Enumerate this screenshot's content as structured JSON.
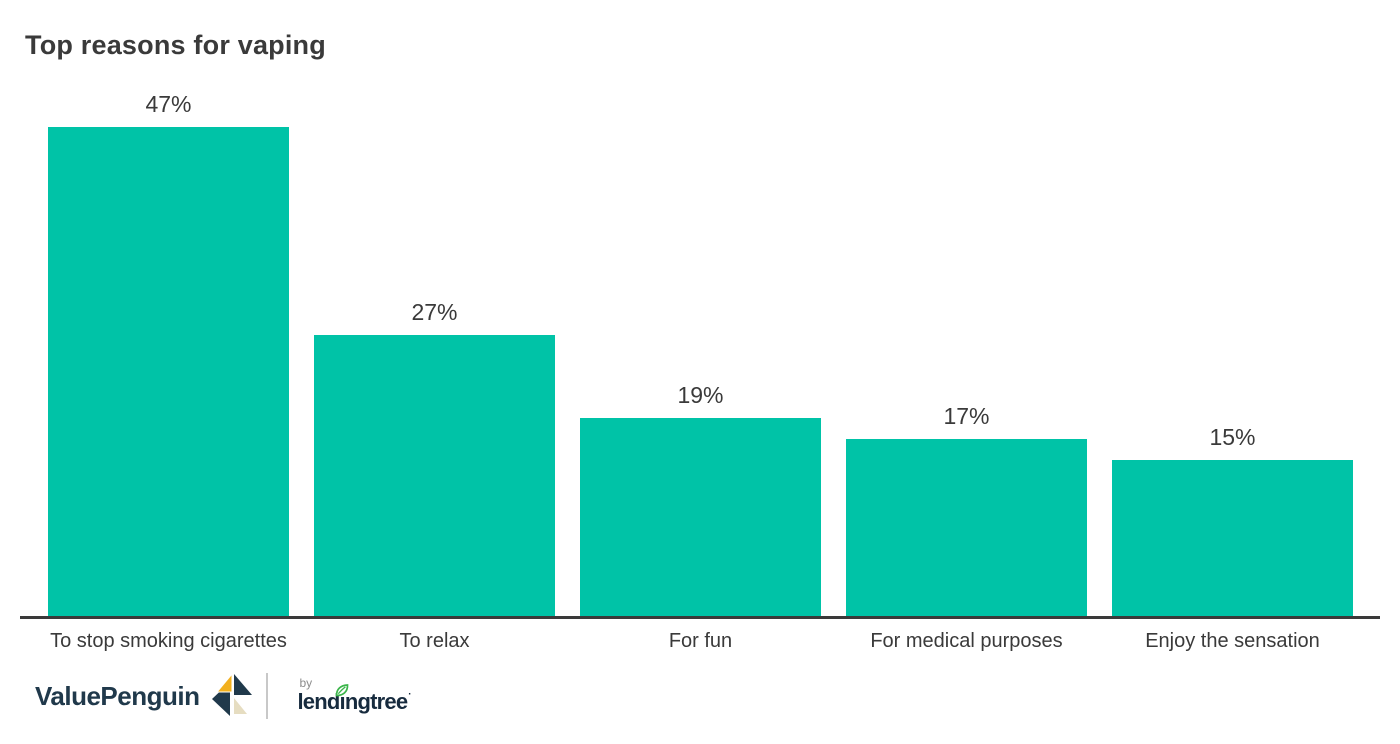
{
  "colors": {
    "background": "#FFFFFF",
    "bar_teal": "#00C3A7",
    "axis_dark": "#3A3A3A",
    "text_dark": "#3A3A3A",
    "vp_navy": "#20394B",
    "lt_navy": "#172B3E",
    "logo_gold": "#F2B01E",
    "logo_beige": "#E6DDC1",
    "leaf_green": "#3BB54A",
    "divider_gray": "#C8C8C8",
    "by_gray": "#8D8D8D"
  },
  "chart_data": {
    "type": "bar",
    "title": "Top reasons for vaping",
    "categories": [
      "To stop smoking cigarettes",
      "To relax",
      "For fun",
      "For medical purposes",
      "Enjoy the sensation"
    ],
    "values": [
      47,
      27,
      19,
      17,
      15
    ],
    "value_labels": [
      "47%",
      "27%",
      "19%",
      "17%",
      "15%"
    ],
    "xlabel": "",
    "ylabel": "",
    "ylim": [
      0,
      50
    ],
    "grid": false,
    "legend": false,
    "bar_color": "#00C3A7",
    "axis_color": "#3A3A3A"
  },
  "footer": {
    "valuepenguin_wordmark": "ValuePenguin",
    "by_label": "by",
    "lendingtree": {
      "pre": "lend",
      "i": "ı",
      "post": "ngtree",
      "trademark": "·"
    }
  }
}
